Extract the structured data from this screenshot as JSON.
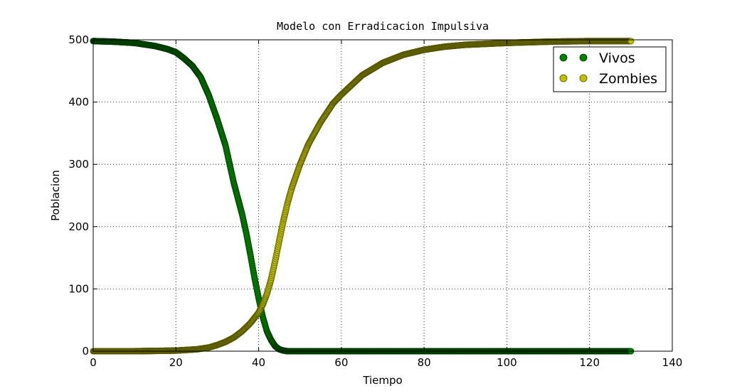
{
  "chart_data": {
    "type": "scatter",
    "title": "Modelo con Erradicacion Impulsiva",
    "xlabel": "Tiempo",
    "ylabel": "Poblacion",
    "xlim": [
      0,
      140
    ],
    "ylim": [
      0,
      500
    ],
    "xticks": [
      0,
      20,
      40,
      60,
      80,
      100,
      120,
      140
    ],
    "yticks": [
      0,
      100,
      200,
      300,
      400,
      500
    ],
    "grid": true,
    "legend_position": "top-right",
    "series": [
      {
        "name": "Vivos",
        "color": "#008000",
        "x": [
          0,
          5,
          10,
          15,
          18,
          20,
          22,
          24,
          26,
          28,
          30,
          32,
          34,
          35,
          36,
          37,
          38,
          39,
          40,
          41,
          42,
          43,
          44,
          45,
          46,
          47,
          50,
          60,
          70,
          80,
          90,
          100,
          110,
          120,
          130
        ],
        "y": [
          498,
          497,
          495,
          490,
          485,
          480,
          470,
          458,
          440,
          410,
          372,
          330,
          270,
          245,
          220,
          190,
          155,
          118,
          85,
          55,
          32,
          18,
          8,
          3,
          1,
          0,
          0,
          0,
          0,
          0,
          0,
          0,
          0,
          0,
          0
        ]
      },
      {
        "name": "Zombies",
        "color": "#bfbf00",
        "x": [
          0,
          10,
          20,
          25,
          28,
          30,
          32,
          34,
          36,
          38,
          40,
          41,
          42,
          43,
          44,
          45,
          46,
          47,
          48,
          50,
          52,
          55,
          58,
          60,
          65,
          70,
          75,
          80,
          85,
          90,
          100,
          110,
          120,
          130
        ],
        "y": [
          0,
          0,
          1,
          3,
          6,
          10,
          15,
          22,
          32,
          45,
          62,
          75,
          92,
          115,
          145,
          178,
          210,
          238,
          262,
          300,
          332,
          368,
          398,
          412,
          443,
          463,
          476,
          484,
          489,
          492,
          495,
          497,
          498,
          498
        ]
      }
    ]
  }
}
